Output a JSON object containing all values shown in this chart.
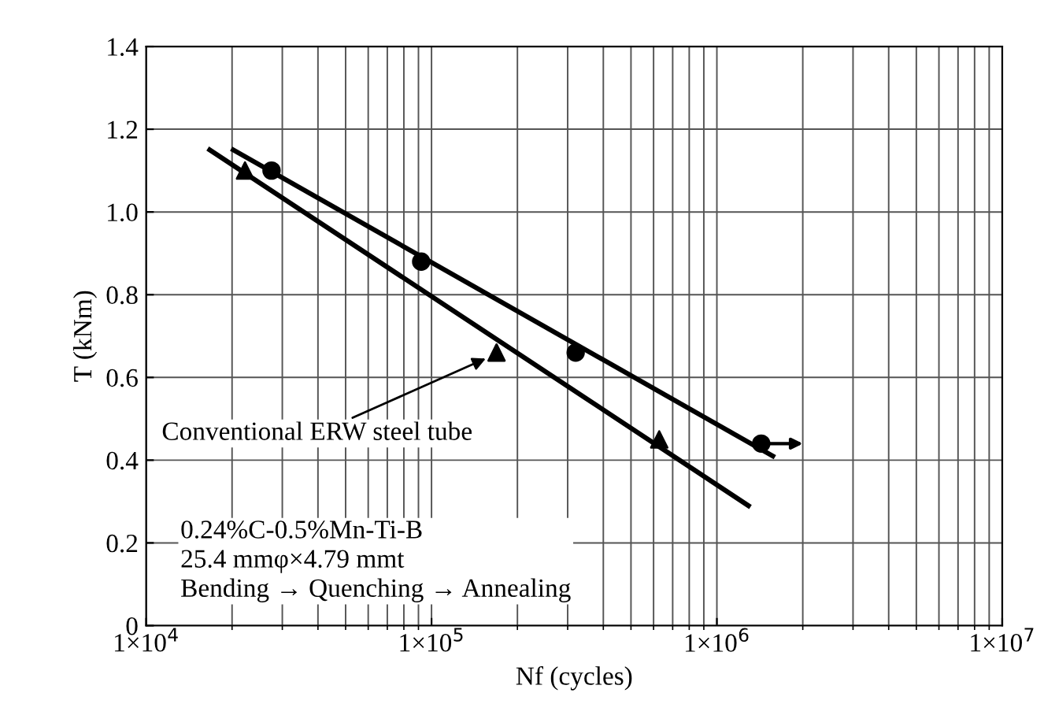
{
  "chart_data": {
    "type": "scatter",
    "xlabel": "Nf (cycles)",
    "ylabel": "T (kNm)",
    "log": "x",
    "xlim": [
      10000,
      10000000
    ],
    "xticks": [
      {
        "value": 10000,
        "label": "1×10$^{4}$"
      },
      {
        "value": 100000,
        "label": "1×10$^{5}$"
      },
      {
        "value": 1000000,
        "label": "1×10$^{6}$"
      },
      {
        "value": 10000000,
        "label": "1×10$^{7}$"
      }
    ],
    "ylim": [
      0,
      1.4
    ],
    "yticks": [
      0,
      0.2,
      0.4,
      0.6,
      0.8,
      {
        "value": 1,
        "label": "1.0"
      },
      1.2,
      1.4
    ],
    "grid": true,
    "series": [
      {
        "marker": "circle",
        "color": "#000000",
        "x": [
          27500,
          92000,
          320000,
          1430000
        ],
        "values": [
          1.1,
          0.88,
          0.66,
          0.44
        ]
      },
      {
        "marker": "triangle",
        "color": "#000000",
        "x": [
          22200,
          169000,
          628000
        ],
        "values": [
          1.1,
          0.66,
          0.45
        ]
      },
      {
        "type": "line",
        "marker": "none",
        "color": "#000000",
        "x": [
          20200,
          1570000
        ],
        "values": [
          1.15,
          0.41
        ]
      },
      {
        "type": "line",
        "marker": "none",
        "color": "#000000",
        "x": [
          16700,
          1290000
        ],
        "values": [
          1.15,
          0.29
        ]
      }
    ],
    "annotations": [
      {
        "text": "Conventional ERW steel tube",
        "x": 160000,
        "y": 0.65
      },
      "0.24%C-0.5%Mn-Ti-B\n25.4 mmφ×4.79 mmt\nBending → Quenching → Annealing"
    ]
  }
}
